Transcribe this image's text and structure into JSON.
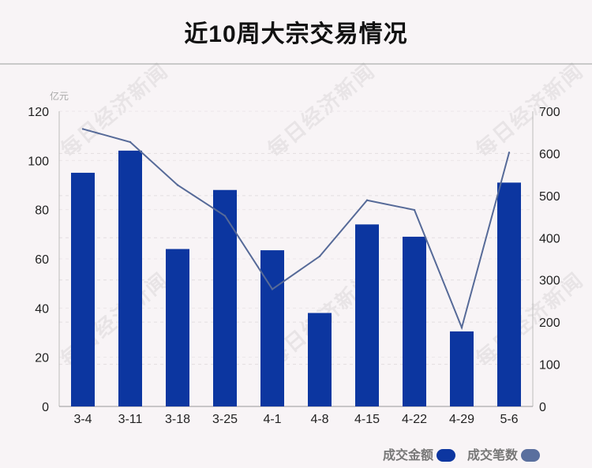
{
  "title": "近10周大宗交易情况",
  "watermark": "每日经济新闻",
  "unit_left": "亿元",
  "colors": {
    "bar": "#0c36a0",
    "line": "#566a98",
    "legend_amount": "#0c36a0",
    "legend_count": "#5a6f9e"
  },
  "legend": {
    "amount": "成交金额",
    "count": "成交笔数"
  },
  "chart_data": {
    "type": "bar",
    "categories": [
      "3-4",
      "3-11",
      "3-18",
      "3-25",
      "4-1",
      "4-8",
      "4-15",
      "4-22",
      "4-29",
      "5-6"
    ],
    "series": [
      {
        "name": "成交金额",
        "type": "bar",
        "axis": "left",
        "values": [
          95,
          104,
          64,
          88,
          63.5,
          38,
          74,
          69,
          30.5,
          91
        ]
      },
      {
        "name": "成交笔数",
        "type": "line",
        "axis": "right",
        "values": [
          658,
          627,
          525,
          452,
          278,
          356,
          489,
          466,
          187,
          602
        ]
      }
    ],
    "y_left": {
      "range": [
        0,
        120
      ],
      "ticks": [
        0,
        20,
        40,
        60,
        80,
        100,
        120
      ]
    },
    "y_right": {
      "range": [
        0,
        700
      ],
      "ticks": [
        0,
        100,
        200,
        300,
        400,
        500,
        600,
        700
      ]
    },
    "grid": true,
    "legend_position": "bottom-right"
  }
}
